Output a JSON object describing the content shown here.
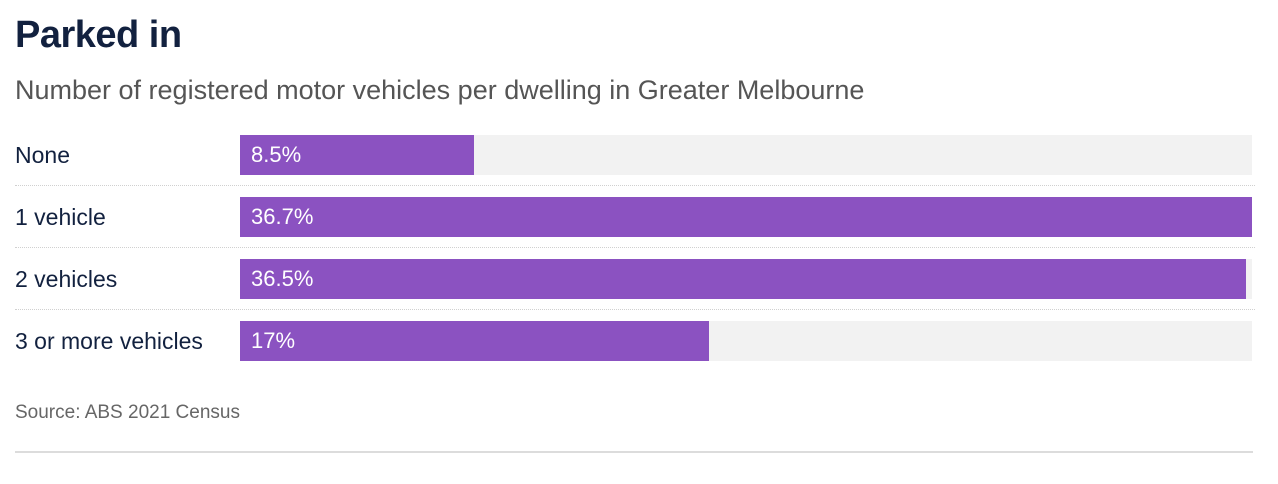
{
  "chart_data": {
    "type": "bar",
    "orientation": "horizontal",
    "title": "Parked in",
    "subtitle": "Number of registered motor vehicles per dwelling in Greater Melbourne",
    "categories": [
      "None",
      "1 vehicle",
      "2 vehicles",
      "3 or more vehicles"
    ],
    "values": [
      8.5,
      36.7,
      36.5,
      17
    ],
    "value_labels": [
      "8.5%",
      "36.7%",
      "36.5%",
      "17%"
    ],
    "unit": "%",
    "xlim": [
      0,
      36.7
    ],
    "bar_color": "#8b52c1",
    "track_color": "#f2f2f2",
    "source": "Source: ABS 2021 Census"
  }
}
